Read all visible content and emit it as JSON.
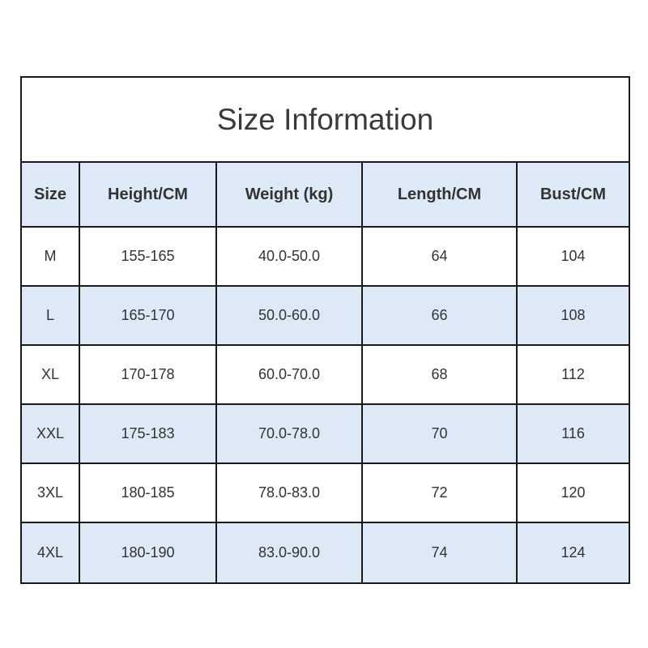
{
  "title": "Size Information",
  "colors": {
    "header_bg": "#dde9f6",
    "alt_row_bg": "#dde9f6",
    "border": "#1a1a1a"
  },
  "headers": [
    "Size",
    "Height/CM",
    "Weight (kg)",
    "Length/CM",
    "Bust/CM"
  ],
  "rows": [
    [
      "M",
      "155-165",
      "40.0-50.0",
      "64",
      "104"
    ],
    [
      "L",
      "165-170",
      "50.0-60.0",
      "66",
      "108"
    ],
    [
      "XL",
      "170-178",
      "60.0-70.0",
      "68",
      "112"
    ],
    [
      "XXL",
      "175-183",
      "70.0-78.0",
      "70",
      "116"
    ],
    [
      "3XL",
      "180-185",
      "78.0-83.0",
      "72",
      "120"
    ],
    [
      "4XL",
      "180-190",
      "83.0-90.0",
      "74",
      "124"
    ]
  ]
}
